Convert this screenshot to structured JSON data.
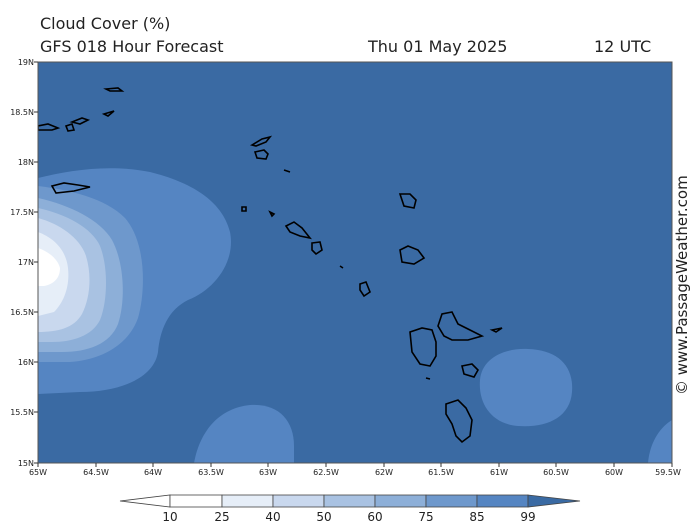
{
  "header": {
    "title": "Cloud Cover (%)",
    "subtitle": "GFS 018 Hour Forecast",
    "date": "Thu 01 May 2025",
    "time": "12 UTC"
  },
  "credit": "© www.PassageWeather.com",
  "axes": {
    "lat_labels": [
      "19N",
      "18.5N",
      "18N",
      "17.5N",
      "17N",
      "16.5N",
      "16N",
      "15.5N",
      "15N"
    ],
    "lon_labels": [
      "65W",
      "64.5W",
      "64W",
      "63.5W",
      "63W",
      "62.5W",
      "62W",
      "61.5W",
      "61W",
      "60.5W",
      "60W",
      "59.5W"
    ]
  },
  "colorbar": {
    "ticks": [
      "10",
      "25",
      "40",
      "50",
      "60",
      "75",
      "85",
      "99"
    ],
    "colors": [
      "#ffffff",
      "#e6eef8",
      "#c9d8ee",
      "#a9c2e2",
      "#8dafd8",
      "#6e98cc",
      "#5585c2",
      "#3a6aa3"
    ]
  },
  "colors": {
    "background_field": "#3a6aa3",
    "coastline": "#000000"
  }
}
